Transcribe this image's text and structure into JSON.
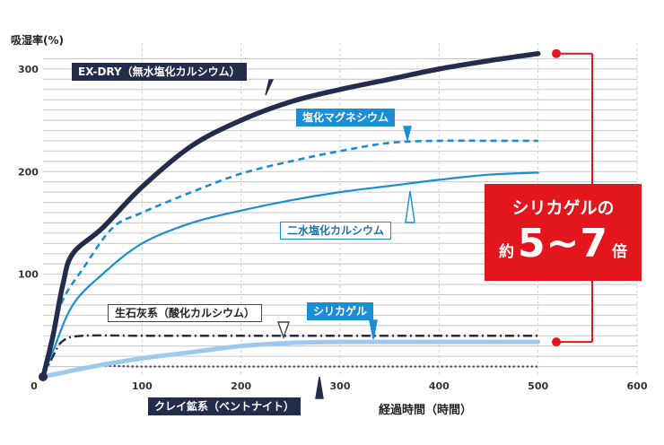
{
  "chart_data": {
    "type": "line",
    "ylabel": "吸湿率(%)",
    "xlabel": "経過時間（時間）",
    "xlim": [
      0,
      600
    ],
    "ylim": [
      0,
      320
    ],
    "xticks": [
      0,
      100,
      200,
      300,
      400,
      500,
      600
    ],
    "yticks": [
      100,
      200,
      300
    ],
    "grid": true,
    "series": [
      {
        "name": "EX-DRY（無水塩化カルシウム）",
        "style": "solid-thick",
        "color": "#242c4c",
        "x": [
          0,
          10,
          20,
          30,
          60,
          100,
          150,
          200,
          250,
          300,
          350,
          400,
          450,
          500
        ],
        "y": [
          0,
          40,
          90,
          120,
          145,
          185,
          225,
          250,
          268,
          280,
          290,
          300,
          308,
          315
        ]
      },
      {
        "name": "塩化マグネシウム",
        "style": "dashed",
        "color": "#1a8ed4",
        "x": [
          0,
          10,
          20,
          40,
          70,
          100,
          150,
          200,
          250,
          300,
          350,
          400,
          450,
          500
        ],
        "y": [
          0,
          40,
          75,
          105,
          145,
          160,
          180,
          198,
          210,
          220,
          228,
          230,
          230,
          230
        ]
      },
      {
        "name": "二水塩化カルシウム",
        "style": "solid",
        "color": "#1a8ed4",
        "x": [
          0,
          10,
          30,
          60,
          100,
          150,
          200,
          250,
          300,
          350,
          400,
          450,
          500
        ],
        "y": [
          0,
          25,
          70,
          100,
          130,
          150,
          162,
          172,
          180,
          186,
          192,
          197,
          199
        ]
      },
      {
        "name": "生石灰系（酸化カルシウム）",
        "style": "dash-dot",
        "color": "#242c4c",
        "x": [
          0,
          10,
          20,
          40,
          100,
          200,
          300,
          400,
          500
        ],
        "y": [
          0,
          20,
          35,
          40,
          40,
          40,
          40,
          40,
          40
        ]
      },
      {
        "name": "シリカゲル",
        "style": "solid-light",
        "color": "#9dc9ec",
        "x": [
          0,
          50,
          100,
          150,
          200,
          250,
          300,
          400,
          500
        ],
        "y": [
          0,
          10,
          18,
          24,
          30,
          33,
          34,
          34,
          34
        ]
      },
      {
        "name": "クレイ鉱系（ベントナイト）",
        "style": "dotted",
        "color": "#4a3550",
        "x": [
          0,
          50,
          100,
          200,
          300,
          400,
          500
        ],
        "y": [
          0,
          10,
          10,
          10,
          10,
          10,
          10
        ]
      }
    ],
    "annotation": {
      "line1": "シリカゲルの",
      "prefix": "約",
      "value": "5~7",
      "suffix": "倍",
      "color": "#e3161e"
    }
  }
}
